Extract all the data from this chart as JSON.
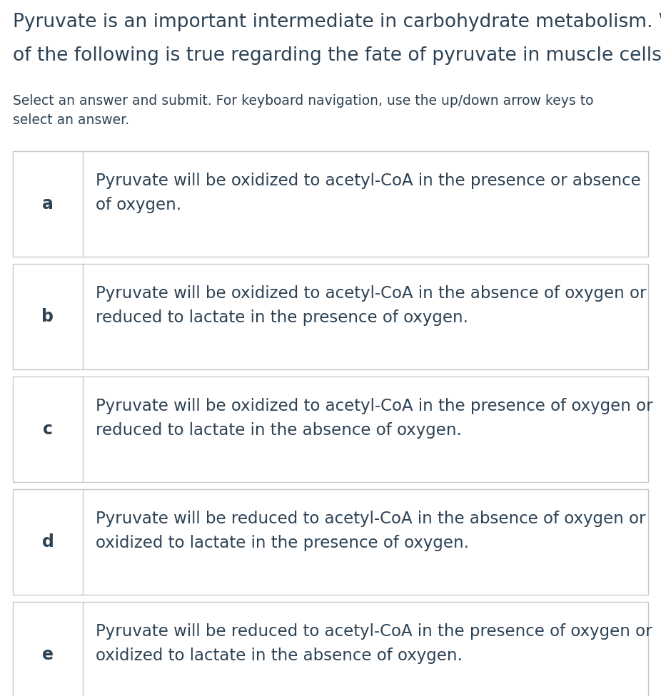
{
  "title_line1": "Pyruvate is an important intermediate in carbohydrate metabolism. Which",
  "title_line2": "of the following is true regarding the fate of pyruvate in muscle cells?",
  "subtitle": "Select an answer and submit. For keyboard navigation, use the up/down arrow keys to\nselect an answer.",
  "options": [
    {
      "label": "a",
      "text": "Pyruvate will be oxidized to acetyl-CoA in the presence or absence\nof oxygen."
    },
    {
      "label": "b",
      "text": "Pyruvate will be oxidized to acetyl-CoA in the absence of oxygen or\nreduced to lactate in the presence of oxygen."
    },
    {
      "label": "c",
      "text": "Pyruvate will be oxidized to acetyl-CoA in the presence of oxygen or\nreduced to lactate in the absence of oxygen."
    },
    {
      "label": "d",
      "text": "Pyruvate will be reduced to acetyl-CoA in the absence of oxygen or\noxidized to lactate in the presence of oxygen."
    },
    {
      "label": "e",
      "text": "Pyruvate will be reduced to acetyl-CoA in the presence of oxygen or\noxidized to lactate in the absence of oxygen."
    }
  ],
  "bg_color": "#ffffff",
  "text_color": "#2d4255",
  "border_color": "#c8c8c8",
  "title_fontsize": 19,
  "subtitle_fontsize": 13.5,
  "label_fontsize": 17,
  "option_fontsize": 16.5,
  "fig_width": 9.26,
  "fig_height": 9.76,
  "dpi": 100
}
